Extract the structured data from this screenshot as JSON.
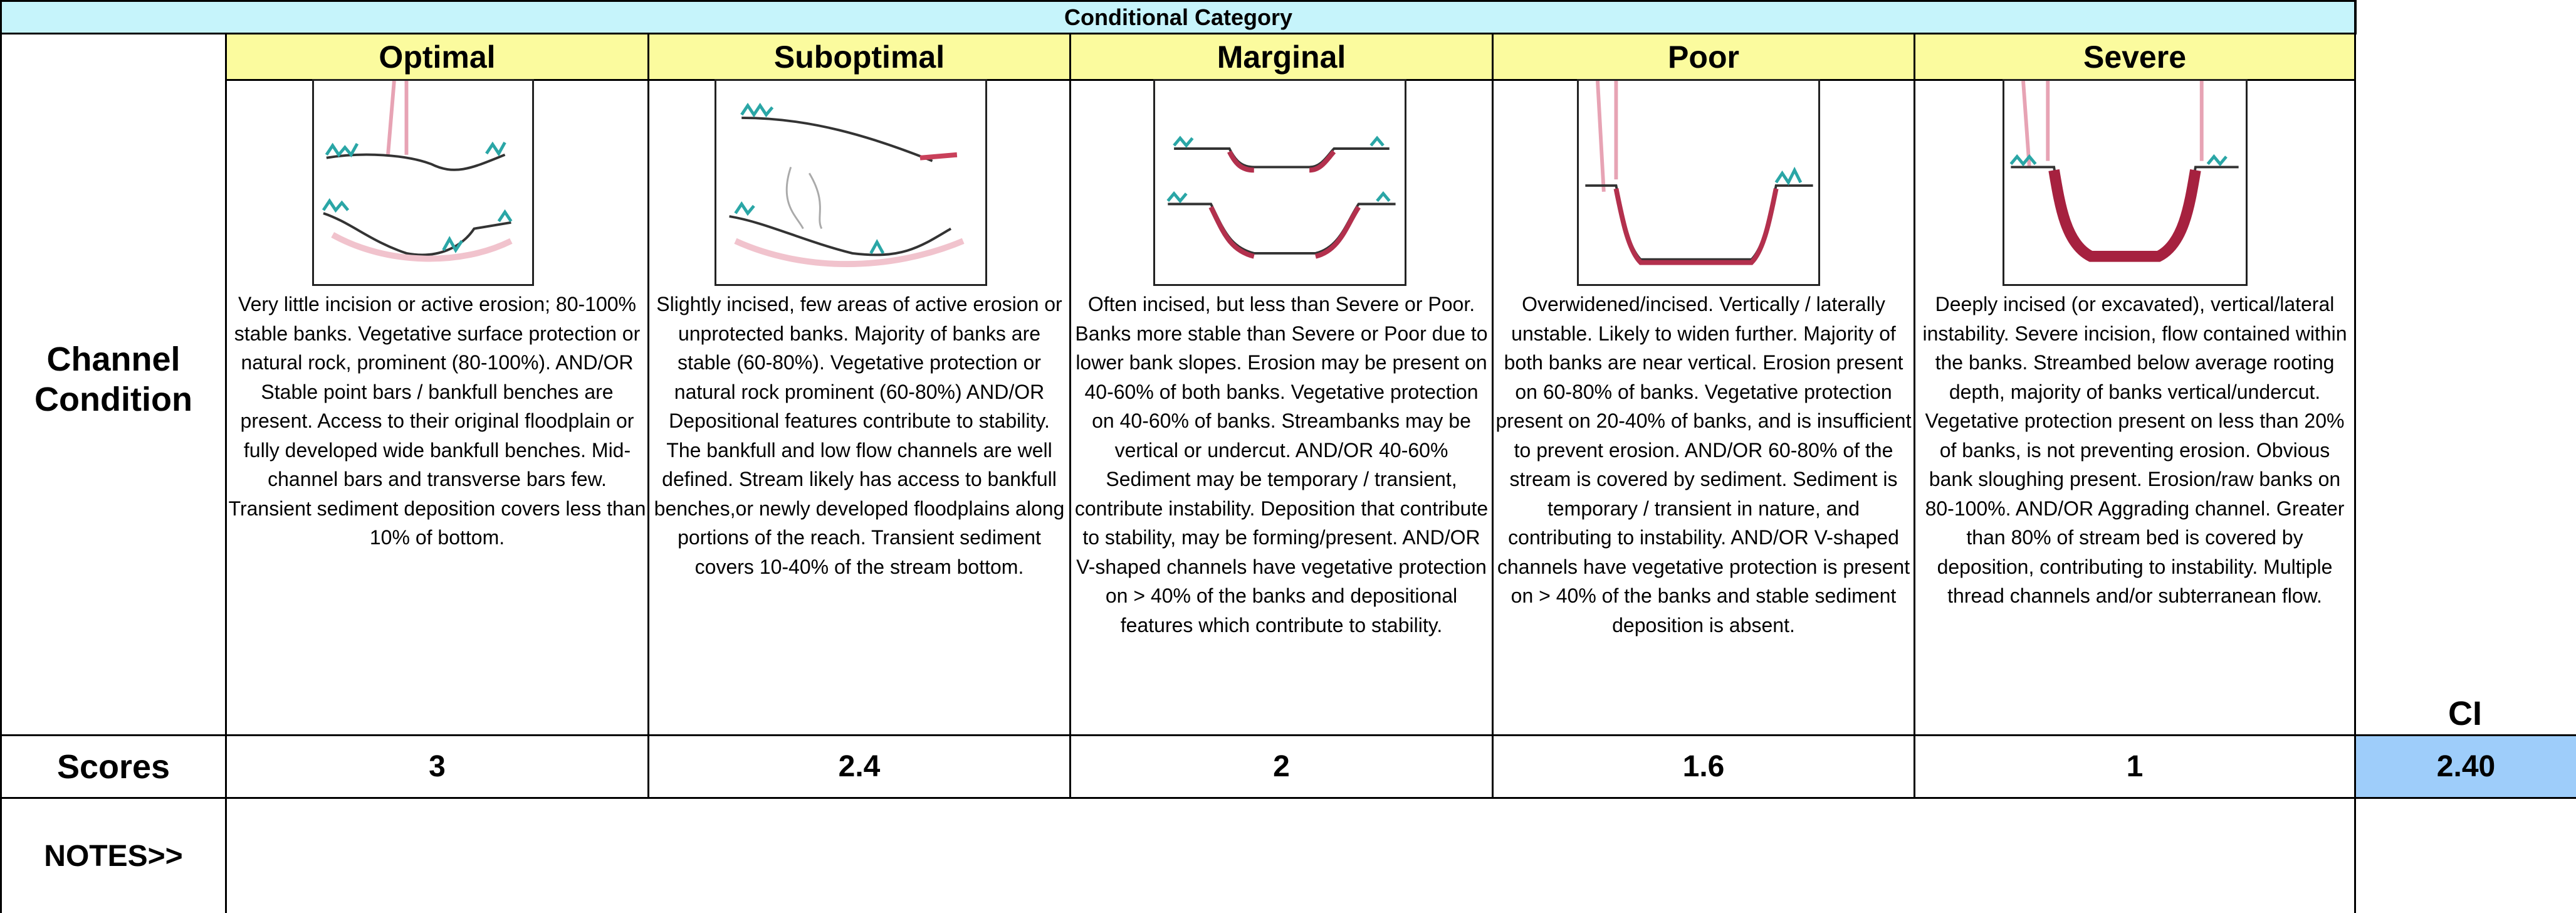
{
  "header": {
    "title": "Conditional Category"
  },
  "row_labels": {
    "condition": "Channel Condition",
    "scores": "Scores",
    "notes": "NOTES>>"
  },
  "categories": [
    {
      "name": "Optimal",
      "description": "Very little incision or active erosion; 80-100% stable banks.  Vegetative surface protection or natural rock,  prominent (80-100%). AND/OR Stable point bars / bankfull benches are present.  Access to their original floodplain or fully developed wide bankfull benches.  Mid-channel bars and transverse bars few.  Transient sediment deposition covers less than 10% of bottom.",
      "score": "3"
    },
    {
      "name": "Suboptimal",
      "description": "Slightly incised, few areas of active erosion or unprotected banks. Majority of banks are stable (60-80%). Vegetative protection or natural rock prominent (60-80%) AND/OR Depositional features contribute to stability.  The bankfull and low flow channels are well defined. Stream likely has access to bankfull benches,or newly developed floodplains along portions of the reach.  Transient sediment covers   10-40% of the stream bottom.",
      "score": "2.4"
    },
    {
      "name": "Marginal",
      "description": "Often incised, but less than Severe or Poor. Banks more stable than Severe or Poor due to lower bank slopes. Erosion may be present on 40-60% of both banks. Vegetative protection on 40-60% of banks. Streambanks may be vertical or undercut.  AND/OR 40-60% Sediment may be temporary / transient, contribute instability. Deposition that contribute to stability, may be forming/present. AND/OR V-shaped channels have vegetative protection on > 40% of the banks and depositional features which contribute to stability.",
      "score": "2"
    },
    {
      "name": "Poor",
      "description": "Overwidened/incised.  Vertically / laterally unstable. Likely to widen further.  Majority of both banks are near vertical. Erosion present on 60-80% of banks.  Vegetative protection present on 20-40% of banks, and is insufficient to prevent erosion.  AND/OR 60-80% of the stream is covered  by sediment. Sediment is temporary / transient in nature, and  contributing to instability. AND/OR  V-shaped channels have vegetative protection is present on > 40% of the banks and stable sediment deposition is absent.",
      "score": "1.6"
    },
    {
      "name": "Severe",
      "description": "Deeply incised (or excavated), vertical/lateral instability.  Severe incision, flow contained within the banks. Streambed below average rooting depth, majority of banks vertical/undercut. Vegetative protection present on less than 20% of banks, is not preventing erosion. Obvious bank sloughing present.  Erosion/raw banks on 80-100%. AND/OR  Aggrading channel. Greater than 80% of stream bed is covered  by deposition, contributing to instability. Multiple thread channels and/or subterranean flow.",
      "score": "1"
    }
  ],
  "ci": {
    "label": "CI",
    "value": "2.40"
  }
}
